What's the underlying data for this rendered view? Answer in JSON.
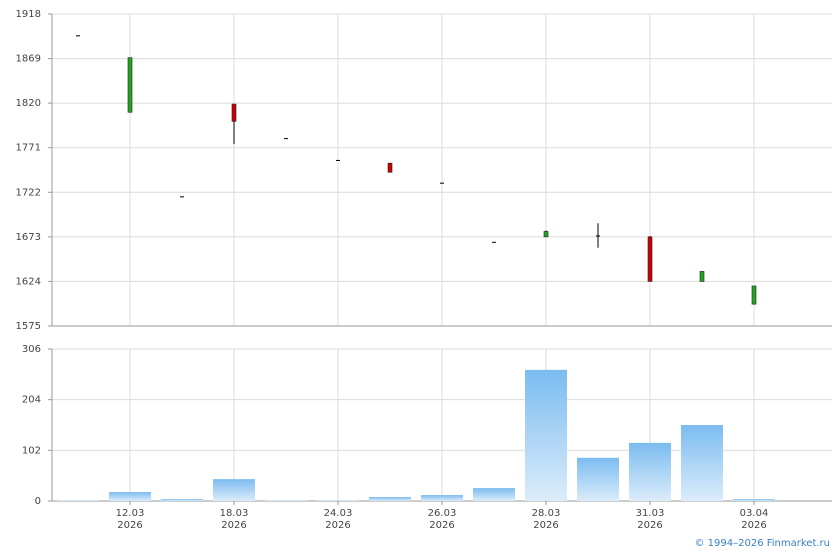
{
  "chart_data": [
    {
      "type": "candlestick",
      "open": [
        1894,
        1810,
        1717,
        1819,
        1781,
        1757,
        1754,
        1732,
        1667,
        1673,
        1674,
        1673,
        1624,
        1599
      ],
      "high": [
        1894,
        1870,
        1717,
        1819,
        1781,
        1757,
        1754,
        1732,
        1667,
        1680,
        1688,
        1674,
        1635,
        1619
      ],
      "low": [
        1894,
        1810,
        1717,
        1775,
        1781,
        1757,
        1744,
        1732,
        1667,
        1673,
        1661,
        1624,
        1624,
        1599
      ],
      "close": [
        1894,
        1870,
        1717,
        1800,
        1781,
        1757,
        1744,
        1732,
        1667,
        1679,
        1674,
        1624,
        1635,
        1619
      ],
      "up_color": "#22a522",
      "down_color": "#cc0000",
      "ylim": [
        1575,
        1918
      ],
      "yticks": [
        1575,
        1624,
        1673,
        1722,
        1771,
        1820,
        1869,
        1918
      ],
      "grid": true
    },
    {
      "type": "bar",
      "categories": [
        null,
        [
          "12.03",
          "2026"
        ],
        null,
        [
          "18.03",
          "2026"
        ],
        null,
        [
          "24.03",
          "2026"
        ],
        null,
        [
          "26.03",
          "2026"
        ],
        null,
        [
          "28.03",
          "2026"
        ],
        null,
        [
          "31.03",
          "2026"
        ],
        null,
        [
          "03.04",
          "2026"
        ]
      ],
      "values": [
        1,
        18,
        4,
        44,
        1,
        1,
        8,
        12,
        26,
        264,
        87,
        117,
        153,
        4
      ],
      "color": "#7bbcf0",
      "ylim": [
        0,
        306
      ],
      "yticks": [
        0,
        102,
        204,
        306
      ],
      "grid": true
    }
  ],
  "footer": "© 1994–2026 Finmarket.ru"
}
